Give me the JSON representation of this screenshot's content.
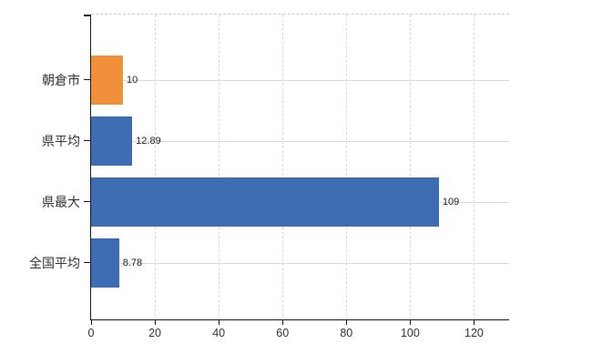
{
  "chart_data": {
    "type": "bar",
    "orientation": "horizontal",
    "title": "",
    "xlabel": "",
    "ylabel": "",
    "categories": [
      "朝倉市",
      "県平均",
      "県最大",
      "全国平均"
    ],
    "series": [
      {
        "name": "values",
        "values": [
          10,
          12.89,
          109,
          8.78
        ]
      }
    ],
    "value_labels": [
      "10",
      "12.89",
      "109",
      "8.78"
    ],
    "bar_colors": [
      "#f0903a",
      "#3d6cb3",
      "#3d6cb3",
      "#3d6cb3"
    ],
    "x_tick_values": [
      0,
      20,
      40,
      60,
      80,
      100,
      120
    ],
    "x_tick_labels": [
      "0",
      "20",
      "40",
      "60",
      "80",
      "100",
      "120"
    ],
    "xlim": [
      0,
      131
    ],
    "grid": true,
    "grid_horizontal_style": "solid",
    "grid_vertical_style": "dashed",
    "legend": false,
    "colors": {
      "highlight_bar": "#f0903a",
      "default_bar": "#3d6cb3",
      "grid": "#d9d9d9",
      "axis": "#1a1a1a",
      "text": "#333333",
      "background": "#ffffff"
    }
  }
}
